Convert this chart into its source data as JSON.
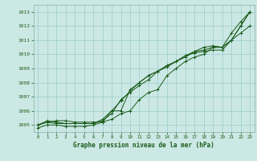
{
  "title": "Graphe pression niveau de la mer (hPa)",
  "bg_color": "#cce8e4",
  "grid_color": "#99cccc",
  "line_color": "#1a5c1a",
  "ylim": [
    1004.5,
    1013.5
  ],
  "xlim": [
    -0.5,
    23.5
  ],
  "yticks": [
    1005,
    1006,
    1007,
    1008,
    1009,
    1010,
    1011,
    1012,
    1013
  ],
  "xticks": [
    0,
    1,
    2,
    3,
    4,
    5,
    6,
    7,
    8,
    9,
    10,
    11,
    12,
    13,
    14,
    15,
    16,
    17,
    18,
    19,
    20,
    21,
    22,
    23
  ],
  "series": [
    [
      1005.0,
      1005.2,
      1005.3,
      1005.3,
      1005.2,
      1005.2,
      1005.2,
      1005.2,
      1006.0,
      1006.0,
      1007.5,
      1008.0,
      1008.5,
      1008.8,
      1009.2,
      1009.5,
      1009.8,
      1010.2,
      1010.5,
      1010.6,
      1010.5,
      1011.5,
      1012.3,
      1013.0
    ],
    [
      1005.0,
      1005.2,
      1005.1,
      1005.1,
      1005.1,
      1005.1,
      1005.1,
      1005.4,
      1006.0,
      1006.7,
      1007.4,
      1008.0,
      1008.5,
      1008.8,
      1009.2,
      1009.5,
      1009.9,
      1010.2,
      1010.3,
      1010.5,
      1010.5,
      1011.0,
      1012.0,
      1013.0
    ],
    [
      1005.0,
      1005.3,
      1005.2,
      1005.1,
      1005.1,
      1005.1,
      1005.1,
      1005.3,
      1005.8,
      1006.8,
      1007.3,
      1007.8,
      1008.2,
      1008.8,
      1009.1,
      1009.5,
      1009.9,
      1010.1,
      1010.2,
      1010.3,
      1010.3,
      1011.0,
      1012.0,
      1013.0
    ],
    [
      1004.8,
      1005.0,
      1005.0,
      1004.9,
      1004.9,
      1004.9,
      1005.0,
      1005.2,
      1005.4,
      1005.8,
      1006.0,
      1006.8,
      1007.3,
      1007.5,
      1008.5,
      1009.0,
      1009.5,
      1009.8,
      1010.0,
      1010.5,
      1010.5,
      1011.0,
      1011.5,
      1012.0
    ]
  ]
}
